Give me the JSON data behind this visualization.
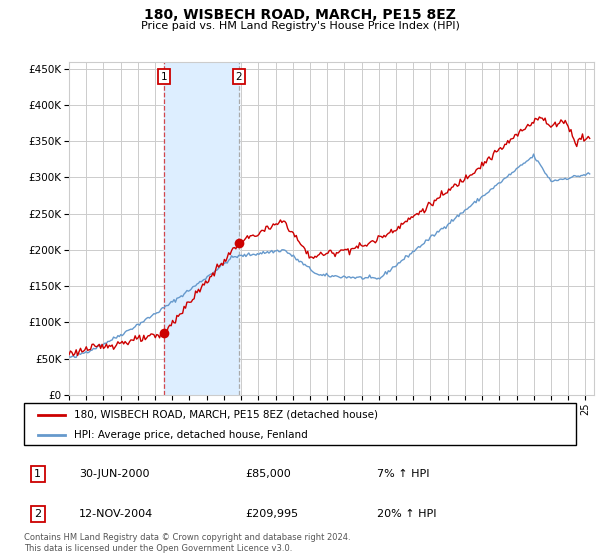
{
  "title": "180, WISBECH ROAD, MARCH, PE15 8EZ",
  "subtitle": "Price paid vs. HM Land Registry's House Price Index (HPI)",
  "footer": "Contains HM Land Registry data © Crown copyright and database right 2024.\nThis data is licensed under the Open Government Licence v3.0.",
  "legend_line1": "180, WISBECH ROAD, MARCH, PE15 8EZ (detached house)",
  "legend_line2": "HPI: Average price, detached house, Fenland",
  "transaction1_date": "30-JUN-2000",
  "transaction1_price": "£85,000",
  "transaction1_hpi": "7% ↑ HPI",
  "transaction2_date": "12-NOV-2004",
  "transaction2_price": "£209,995",
  "transaction2_hpi": "20% ↑ HPI",
  "red_color": "#cc0000",
  "blue_color": "#6699cc",
  "shade_color": "#ddeeff",
  "grid_color": "#cccccc",
  "bg_color": "#ffffff",
  "ylim": [
    0,
    460000
  ],
  "xlim_start": 1995.0,
  "xlim_end": 2025.5,
  "transaction1_x": 2000.5,
  "transaction1_y": 85000,
  "transaction2_x": 2004.87,
  "transaction2_y": 209995,
  "shade_x_start": 2000.5,
  "shade_x_end": 2004.87,
  "yticks": [
    0,
    50000,
    100000,
    150000,
    200000,
    250000,
    300000,
    350000,
    400000,
    450000
  ],
  "ytick_labels": [
    "£0",
    "£50K",
    "£100K",
    "£150K",
    "£200K",
    "£250K",
    "£300K",
    "£350K",
    "£400K",
    "£450K"
  ],
  "xticks": [
    1995,
    1996,
    1997,
    1998,
    1999,
    2000,
    2001,
    2002,
    2003,
    2004,
    2005,
    2006,
    2007,
    2008,
    2009,
    2010,
    2011,
    2012,
    2013,
    2014,
    2015,
    2016,
    2017,
    2018,
    2019,
    2020,
    2021,
    2022,
    2023,
    2024,
    2025
  ]
}
